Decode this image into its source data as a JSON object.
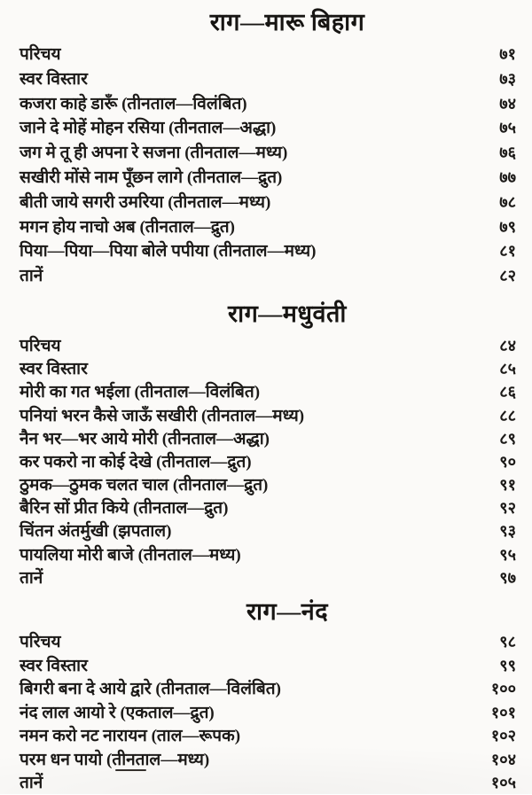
{
  "page": {
    "kind": "table-of-contents",
    "sections": [
      {
        "title": "राग—मारू बिहाग",
        "items": [
          {
            "label": "परिचय",
            "page": "७१"
          },
          {
            "label": "स्वर विस्तार",
            "page": "७३"
          },
          {
            "label": "कजरा काहे डारूँ (तीनताल—विलंबित)",
            "page": "७४"
          },
          {
            "label": "जाने दे मोहें मोहन रसिया (तीनताल—अद्धा)",
            "page": "७५"
          },
          {
            "label": "जग मे तू ही अपना रे सजना (तीनताल—मध्य)",
            "page": "७६"
          },
          {
            "label": "सखीरी मोंसे नाम पूँछन लागे (तीनताल—द्रुत)",
            "page": "७७"
          },
          {
            "label": "बीती जाये सगरी उमरिया (तीनताल—मध्य)",
            "page": "७८"
          },
          {
            "label": "मगन होय नाचो अब (तीनताल—द्रुत)",
            "page": "७९"
          },
          {
            "label": "पिया—पिया—पिया बोले पपीया (तीनताल—मध्य)",
            "page": "८१"
          },
          {
            "label": "तानें",
            "page": "८२"
          }
        ]
      },
      {
        "title": "राग—मधुवंती",
        "items": [
          {
            "label": "परिचय",
            "page": "८४"
          },
          {
            "label": "स्वर विस्तार",
            "page": "८५"
          },
          {
            "label": "मोरी का गत भईला (तीनताल—विलंबित)",
            "page": "८६"
          },
          {
            "label": "पनियां भरन कैसे जाऊँ सखीरी (तीनताल—मध्य)",
            "page": "८८"
          },
          {
            "label": "नैन भर—भर आये मोरी (तीनताल—अद्धा)",
            "page": "८९"
          },
          {
            "label": "कर पकरो ना कोई देखे (तीनताल—द्रुत)",
            "page": "९०"
          },
          {
            "label": "ठुमक—ठुमक चलत चाल (तीनताल—द्रुत)",
            "page": "९१"
          },
          {
            "label": "बैरिन सों प्रीत किये (तीनताल—द्रुत)",
            "page": "९२"
          },
          {
            "label": "चिंतन अंतर्मुखी (झपताल)",
            "page": "९३"
          },
          {
            "label": "पायलिया मोरी बाजे (तीनताल—मध्य)",
            "page": "९५"
          },
          {
            "label": "तानें",
            "page": "९७"
          }
        ]
      },
      {
        "title": "राग—नंद",
        "items": [
          {
            "label": "परिचय",
            "page": "९८"
          },
          {
            "label": "स्वर विस्तार",
            "page": "९९"
          },
          {
            "label": "बिगरी बना दे आये द्वारे (तीनताल—विलंबित)",
            "page": "१००"
          },
          {
            "label": "नंद लाल आयो रे (एकताल—द्रुत)",
            "page": "१०१"
          },
          {
            "label": "नमन करो नट नारायन (ताल—रूपक)",
            "page": "१०२"
          },
          {
            "label": "परम धन पायो (तीनताल—मध्य)",
            "page": "१०४",
            "underline": true
          },
          {
            "label": "तानें",
            "page": "१०५"
          }
        ]
      }
    ],
    "colors": {
      "ink": "#1c1a18",
      "paper": "#fbfaf8"
    }
  }
}
